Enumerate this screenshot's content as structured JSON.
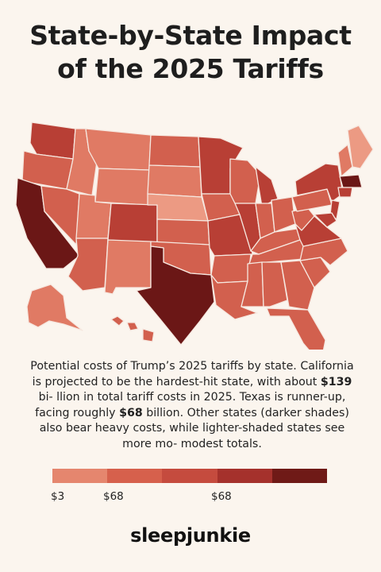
{
  "title": {
    "line1": "State-by-State Impact",
    "line2": "of the 2025 Tariffs"
  },
  "description": {
    "p1": "Potential costs of Trump’s 2025 tariffs by state. California is projected to be the hardest-hit state, with about ",
    "ca_value": "$139",
    "p2": " bi- llion in total tariff costs in 2025. Texas is runner-up, facing roughly ",
    "tx_value": "$68",
    "p3": " billion. Other states (darker shades) also bear heavy costs, while lighter-shaded states see more mo- modest totals."
  },
  "legend": {
    "colors": [
      "#e5866e",
      "#d6604c",
      "#c54b3e",
      "#a5312c",
      "#6f1a17"
    ],
    "tick_labels": [
      "$3",
      "$68",
      "$68"
    ]
  },
  "brand": "sleepjunkie",
  "colors": {
    "background": "#fbf5ee",
    "level1": "#ec9a83",
    "level2": "#e07a64",
    "level3": "#d2604e",
    "level4": "#b83f35",
    "level5": "#94282a",
    "level6": "#6b1716"
  }
}
